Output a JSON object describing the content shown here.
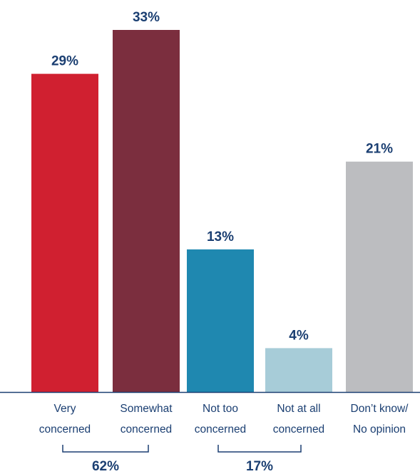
{
  "chart_data": {
    "type": "bar",
    "categories": [
      [
        "Very",
        "concerned"
      ],
      [
        "Somewhat",
        "concerned"
      ],
      [
        "Not too",
        "concerned"
      ],
      [
        "Not at all",
        "concerned"
      ],
      [
        "Don’t know/",
        "No opinion"
      ]
    ],
    "values": [
      29,
      33,
      13,
      4,
      21
    ],
    "value_labels": [
      "29%",
      "33%",
      "13%",
      "4%",
      "21%"
    ],
    "ylim": [
      0,
      33
    ],
    "colors": [
      "#d02030",
      "#7b2e3e",
      "#1f88b0",
      "#a7ccd8",
      "#bcbdc0"
    ],
    "axis_color": "#1b3f72",
    "groups": [
      {
        "label": "62%",
        "from": 0,
        "to": 1
      },
      {
        "label": "17%",
        "from": 2,
        "to": 3
      }
    ],
    "grid": false,
    "legend": "none"
  }
}
